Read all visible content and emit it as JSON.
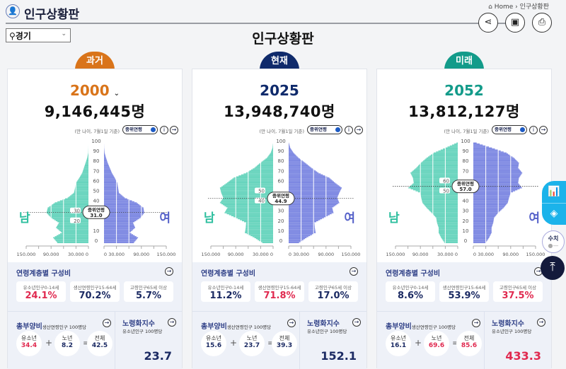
{
  "header": {
    "title": "인구상황판",
    "breadcrumb": {
      "home": "Home",
      "current": "인구상황판"
    },
    "actions": [
      "share-icon",
      "image-icon",
      "print-icon"
    ]
  },
  "region_select": {
    "value": "경기"
  },
  "page_title": "인구상황판",
  "colors": {
    "past": "#d9741a",
    "present": "#0f2a6b",
    "future": "#139b8a",
    "male": "#67d4bd",
    "female": "#7d88e2",
    "highlight": "#e0294f",
    "navy": "#1b2a63"
  },
  "common": {
    "note": "(만 나이, 7월1일 기준)",
    "toggle_label": "중위연령",
    "male_label": "남",
    "female_label": "여",
    "median_label": "중위연령",
    "age_section_title": "연령계층별 구성비",
    "youth_label": "유소년인구0-14세",
    "working_label": "생산연령인구15-64세",
    "elderly_label": "고령인구65세 이상",
    "dependency_title": "총부양비",
    "dependency_sub": "생산연령인구 100명당",
    "dep_youth": "유소년",
    "dep_elderly": "노년",
    "dep_total": "전체",
    "aging_title": "노령화지수",
    "aging_sub": "유소년인구 100명당",
    "plus": "+",
    "equals": "="
  },
  "panels": [
    {
      "tag": "과거",
      "year": "2000",
      "has_dropdown": true,
      "population": "9,146,445명",
      "median_age": "31.0",
      "youth": "24.1%",
      "working": "70.2%",
      "elderly": "5.7%",
      "dep_youth": "34.4",
      "dep_elderly": "8.2",
      "dep_total": "42.5",
      "aging_index": "23.7",
      "highlight": [
        "youth",
        "dep_youth"
      ]
    },
    {
      "tag": "현재",
      "year": "2025",
      "has_dropdown": false,
      "population": "13,948,740명",
      "median_age": "44.9",
      "youth": "11.2%",
      "working": "71.8%",
      "elderly": "17.0%",
      "dep_youth": "15.6",
      "dep_elderly": "23.7",
      "dep_total": "39.3",
      "aging_index": "152.1",
      "highlight": [
        "working"
      ]
    },
    {
      "tag": "미래",
      "year": "2052",
      "has_dropdown": false,
      "population": "13,812,127명",
      "median_age": "57.0",
      "youth": "8.6%",
      "working": "53.9%",
      "elderly": "37.5%",
      "dep_youth": "16.1",
      "dep_elderly": "69.6",
      "dep_total": "85.6",
      "aging_index": "433.3",
      "highlight": [
        "elderly",
        "dep_elderly",
        "dep_total",
        "aging_index"
      ]
    }
  ],
  "chart_data": [
    {
      "type": "bar",
      "subtype": "population-pyramid",
      "year": "2000",
      "y_ticks": [
        "0",
        "10",
        "20",
        "30",
        "40",
        "50",
        "60",
        "70",
        "80",
        "90",
        "100"
      ],
      "x_ticks": [
        "150,000",
        "90,000",
        "30,000",
        "0",
        "0",
        "30,000",
        "90,000",
        "150,000"
      ],
      "xlim": [
        0,
        150000
      ],
      "ylim": [
        0,
        100
      ],
      "median_age": 31.0,
      "ages": [
        0,
        5,
        10,
        15,
        20,
        25,
        30,
        35,
        40,
        45,
        50,
        55,
        60,
        65,
        70,
        75,
        80,
        85,
        90,
        95,
        100
      ],
      "male": [
        75000,
        85000,
        64000,
        78000,
        71000,
        90000,
        101000,
        98000,
        81000,
        50000,
        35000,
        32000,
        30000,
        22000,
        15000,
        11000,
        7000,
        3000,
        500,
        100,
        0
      ],
      "female": [
        72000,
        82000,
        62000,
        75000,
        70000,
        88000,
        97000,
        95000,
        79000,
        50000,
        36000,
        34000,
        32000,
        26000,
        19000,
        14000,
        9000,
        5000,
        1500,
        300,
        0
      ]
    },
    {
      "type": "bar",
      "subtype": "population-pyramid",
      "year": "2025",
      "y_ticks": [
        "0",
        "10",
        "20",
        "30",
        "40",
        "50",
        "60",
        "70",
        "80",
        "90",
        "100"
      ],
      "x_ticks": [
        "150,000",
        "90,000",
        "30,000",
        "0",
        "0",
        "30,000",
        "90,000",
        "150,000"
      ],
      "xlim": [
        0,
        150000
      ],
      "ylim": [
        0,
        100
      ],
      "median_age": 44.9,
      "ages": [
        0,
        5,
        10,
        15,
        20,
        25,
        30,
        35,
        40,
        45,
        50,
        55,
        60,
        65,
        70,
        75,
        80,
        85,
        90,
        95,
        100
      ],
      "male": [
        26000,
        45000,
        68000,
        66000,
        65000,
        90000,
        117000,
        110000,
        128000,
        120000,
        125000,
        128000,
        111000,
        95000,
        65000,
        45000,
        31000,
        15000,
        6000,
        1500,
        0
      ],
      "female": [
        25000,
        43000,
        65000,
        63000,
        62000,
        85000,
        108000,
        105000,
        122000,
        117000,
        122000,
        128000,
        112000,
        98000,
        72000,
        55000,
        40000,
        24000,
        12000,
        4000,
        500
      ]
    },
    {
      "type": "bar",
      "subtype": "population-pyramid",
      "year": "2052",
      "y_ticks": [
        "0",
        "10",
        "20",
        "30",
        "40",
        "50",
        "60",
        "70",
        "80",
        "90",
        "100"
      ],
      "x_ticks": [
        "150,000",
        "90,000",
        "30,000",
        "0",
        "0",
        "30,000",
        "90,000",
        "150,000"
      ],
      "xlim": [
        0,
        150000
      ],
      "ylim": [
        0,
        100
      ],
      "median_age": 57.0,
      "ages": [
        0,
        5,
        10,
        15,
        20,
        25,
        30,
        35,
        40,
        45,
        50,
        55,
        60,
        65,
        70,
        75,
        80,
        85,
        90,
        95,
        100
      ],
      "male": [
        32000,
        40000,
        46000,
        46000,
        50000,
        52000,
        63000,
        75000,
        85000,
        88000,
        90000,
        119000,
        106000,
        108000,
        114000,
        100000,
        89000,
        75000,
        58000,
        30000,
        3000
      ],
      "female": [
        30000,
        38000,
        44000,
        44000,
        48000,
        50000,
        60000,
        73000,
        83000,
        86000,
        90000,
        117000,
        108000,
        110000,
        118000,
        108000,
        110000,
        98000,
        80000,
        45000,
        8000
      ]
    }
  ],
  "floating": {
    "numbers_label": "수치"
  }
}
